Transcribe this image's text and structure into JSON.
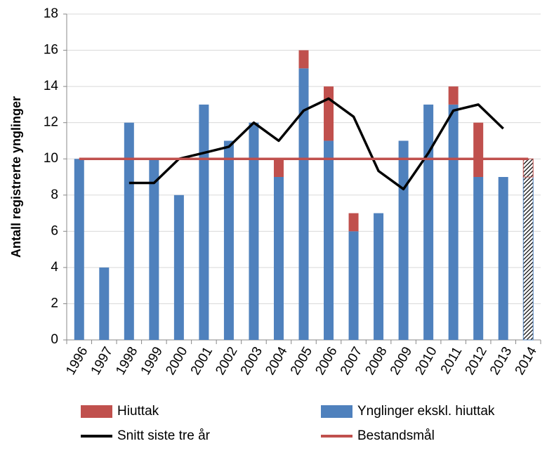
{
  "chart_data": {
    "type": "bar",
    "y_label": "Antall registrerte ynglinger",
    "categories": [
      "1996",
      "1997",
      "1998",
      "1999",
      "2000",
      "2001",
      "2002",
      "2003",
      "2004",
      "2005",
      "2006",
      "2007",
      "2008",
      "2009",
      "2010",
      "2011",
      "2012",
      "2013",
      "2014"
    ],
    "series": [
      {
        "name": "Hiuttak",
        "kind": "bar",
        "color": "#c0504d",
        "values": [
          0,
          0,
          0,
          0,
          0,
          0,
          0,
          0,
          1,
          1,
          3,
          1,
          0,
          0,
          0,
          1,
          3,
          0,
          1
        ]
      },
      {
        "name": "Ynglinger ekskl. hiuttak",
        "kind": "bar",
        "color": "#4f81bd",
        "values": [
          10,
          4,
          12,
          10,
          8,
          13,
          11,
          12,
          9,
          15,
          11,
          6,
          7,
          11,
          13,
          13,
          9,
          9,
          9
        ]
      },
      {
        "name": "Snitt siste tre år",
        "kind": "line",
        "color": "#000000",
        "values": [
          null,
          null,
          8.67,
          8.67,
          10,
          10.33,
          10.67,
          12,
          11,
          12.67,
          13.33,
          12.33,
          9.33,
          8.33,
          10.33,
          12.67,
          13,
          11.67,
          null
        ]
      },
      {
        "name": "Bestandsmål",
        "kind": "line",
        "color": "#c0504d",
        "values": [
          10,
          10,
          10,
          10,
          10,
          10,
          10,
          10,
          10,
          10,
          10,
          10,
          10,
          10,
          10,
          10,
          10,
          10,
          10
        ]
      }
    ],
    "stack_order": [
      1,
      0
    ],
    "hatched_categories": [
      "2014"
    ],
    "ylim": [
      0,
      18
    ],
    "yticks": [
      0,
      2,
      4,
      6,
      8,
      10,
      12,
      14,
      16,
      18
    ],
    "grid": true
  }
}
